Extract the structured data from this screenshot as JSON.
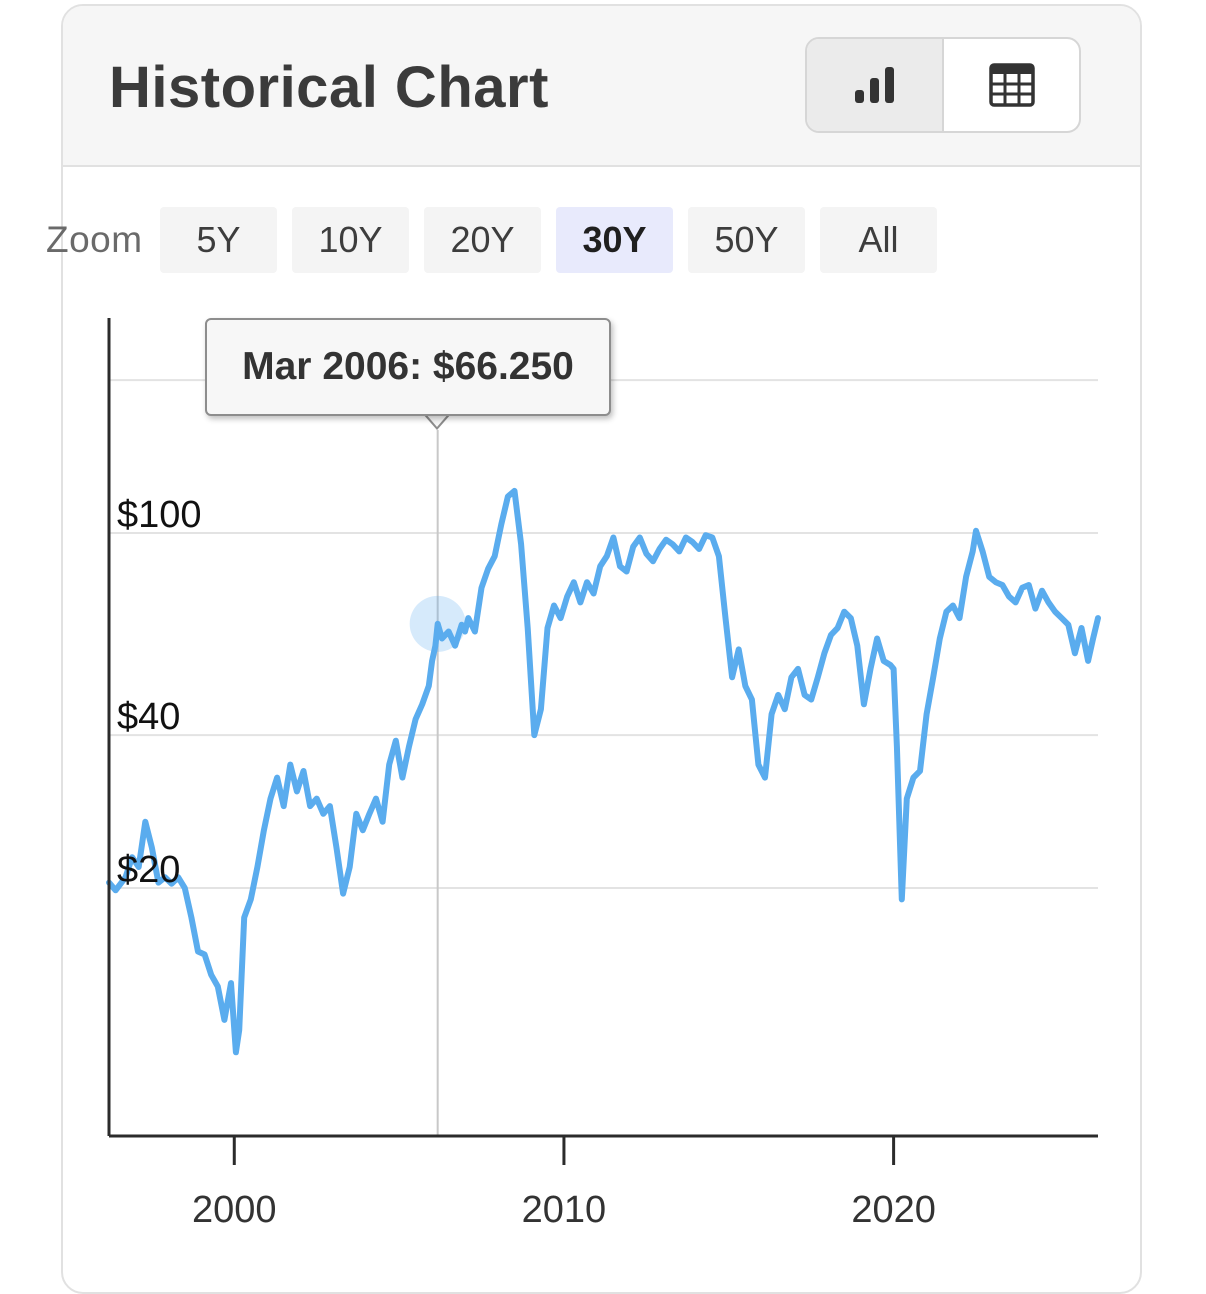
{
  "header": {
    "title": "Historical Chart",
    "chart_view_icon": "bar-chart-icon",
    "table_view_icon": "table-grid-icon"
  },
  "zoom": {
    "label": "Zoom",
    "options": [
      "5Y",
      "10Y",
      "20Y",
      "30Y",
      "50Y",
      "All"
    ],
    "selected": "30Y"
  },
  "tooltip": {
    "text": "Mar 2006: $66.250"
  },
  "colors": {
    "line": "#5aacee",
    "grid": "#e3e3e3",
    "axis": "#2b2b2b",
    "crosshair": "#c8c8c8",
    "zoom_active_bg": "#e8eafc"
  },
  "chart_data": {
    "type": "line",
    "title": "Historical Chart",
    "xlabel": "",
    "ylabel": "",
    "x_ticks": [
      2000,
      2010,
      2020
    ],
    "y_ticks": [
      {
        "value": 20,
        "label": "$20"
      },
      {
        "value": 40,
        "label": "$40"
      },
      {
        "value": 100,
        "label": "$100"
      }
    ],
    "y_scale": "log",
    "xlim": [
      1996.2,
      2026.2
    ],
    "ylim": [
      6.5,
      265
    ],
    "grid": true,
    "legend": "none",
    "highlight": {
      "x": 2006.17,
      "y": 66.25
    },
    "series": [
      {
        "points": [
          [
            1996.2,
            20.5
          ],
          [
            1996.4,
            19.8
          ],
          [
            1996.7,
            21
          ],
          [
            1996.9,
            23
          ],
          [
            1997.1,
            22
          ],
          [
            1997.3,
            27
          ],
          [
            1997.5,
            24
          ],
          [
            1997.7,
            20.5
          ],
          [
            1997.9,
            21
          ],
          [
            1998.1,
            20.4
          ],
          [
            1998.3,
            21
          ],
          [
            1998.5,
            20
          ],
          [
            1998.7,
            17.5
          ],
          [
            1998.9,
            15
          ],
          [
            1999.1,
            14.8
          ],
          [
            1999.3,
            13.5
          ],
          [
            1999.5,
            12.8
          ],
          [
            1999.7,
            11
          ],
          [
            1999.9,
            13
          ],
          [
            2000.05,
            9.5
          ],
          [
            2000.15,
            10.5
          ],
          [
            2000.3,
            17.5
          ],
          [
            2000.5,
            19
          ],
          [
            2000.7,
            22
          ],
          [
            2000.9,
            26
          ],
          [
            2001.1,
            30
          ],
          [
            2001.3,
            33
          ],
          [
            2001.5,
            29
          ],
          [
            2001.7,
            35
          ],
          [
            2001.9,
            31
          ],
          [
            2002.1,
            34
          ],
          [
            2002.3,
            29
          ],
          [
            2002.5,
            30
          ],
          [
            2002.7,
            28
          ],
          [
            2002.9,
            29
          ],
          [
            2003.1,
            24
          ],
          [
            2003.3,
            19.5
          ],
          [
            2003.5,
            22
          ],
          [
            2003.7,
            28
          ],
          [
            2003.9,
            26
          ],
          [
            2004.1,
            28
          ],
          [
            2004.3,
            30
          ],
          [
            2004.5,
            27
          ],
          [
            2004.7,
            35
          ],
          [
            2004.9,
            39
          ],
          [
            2005.1,
            33
          ],
          [
            2005.3,
            38
          ],
          [
            2005.5,
            43
          ],
          [
            2005.7,
            46
          ],
          [
            2005.9,
            50
          ],
          [
            2006.0,
            56
          ],
          [
            2006.1,
            60
          ],
          [
            2006.17,
            66.25
          ],
          [
            2006.3,
            62
          ],
          [
            2006.5,
            64
          ],
          [
            2006.7,
            60
          ],
          [
            2006.9,
            66
          ],
          [
            2007.0,
            64
          ],
          [
            2007.1,
            68
          ],
          [
            2007.3,
            64
          ],
          [
            2007.5,
            78
          ],
          [
            2007.7,
            85
          ],
          [
            2007.9,
            90
          ],
          [
            2008.1,
            104
          ],
          [
            2008.3,
            118
          ],
          [
            2008.5,
            121
          ],
          [
            2008.7,
            95
          ],
          [
            2008.9,
            65
          ],
          [
            2009.1,
            40
          ],
          [
            2009.3,
            45
          ],
          [
            2009.5,
            65
          ],
          [
            2009.7,
            72
          ],
          [
            2009.9,
            68
          ],
          [
            2010.1,
            75
          ],
          [
            2010.3,
            80
          ],
          [
            2010.5,
            73
          ],
          [
            2010.7,
            80
          ],
          [
            2010.9,
            76
          ],
          [
            2011.1,
            86
          ],
          [
            2011.3,
            90
          ],
          [
            2011.5,
            98
          ],
          [
            2011.7,
            86
          ],
          [
            2011.9,
            84
          ],
          [
            2012.1,
            94
          ],
          [
            2012.3,
            98
          ],
          [
            2012.5,
            91
          ],
          [
            2012.7,
            88
          ],
          [
            2012.9,
            93
          ],
          [
            2013.1,
            97
          ],
          [
            2013.3,
            95
          ],
          [
            2013.5,
            92
          ],
          [
            2013.7,
            98
          ],
          [
            2013.9,
            96
          ],
          [
            2014.1,
            93
          ],
          [
            2014.3,
            99
          ],
          [
            2014.5,
            98
          ],
          [
            2014.7,
            90
          ],
          [
            2014.9,
            68
          ],
          [
            2015.1,
            52
          ],
          [
            2015.3,
            59
          ],
          [
            2015.5,
            50
          ],
          [
            2015.7,
            47
          ],
          [
            2015.9,
            35
          ],
          [
            2016.1,
            33
          ],
          [
            2016.3,
            44
          ],
          [
            2016.5,
            48
          ],
          [
            2016.7,
            45
          ],
          [
            2016.9,
            52
          ],
          [
            2017.1,
            54
          ],
          [
            2017.3,
            48
          ],
          [
            2017.5,
            47
          ],
          [
            2017.7,
            52
          ],
          [
            2017.9,
            58
          ],
          [
            2018.1,
            63
          ],
          [
            2018.3,
            65
          ],
          [
            2018.5,
            70
          ],
          [
            2018.7,
            68
          ],
          [
            2018.9,
            60
          ],
          [
            2019.1,
            46
          ],
          [
            2019.3,
            54
          ],
          [
            2019.5,
            62
          ],
          [
            2019.7,
            56
          ],
          [
            2019.9,
            55
          ],
          [
            2020.0,
            54
          ],
          [
            2020.1,
            38
          ],
          [
            2020.25,
            19
          ],
          [
            2020.4,
            30
          ],
          [
            2020.6,
            33
          ],
          [
            2020.8,
            34
          ],
          [
            2021.0,
            44
          ],
          [
            2021.2,
            52
          ],
          [
            2021.4,
            62
          ],
          [
            2021.6,
            70
          ],
          [
            2021.8,
            72
          ],
          [
            2022.0,
            68
          ],
          [
            2022.2,
            82
          ],
          [
            2022.4,
            92
          ],
          [
            2022.5,
            101
          ],
          [
            2022.7,
            92
          ],
          [
            2022.9,
            82
          ],
          [
            2023.1,
            80
          ],
          [
            2023.3,
            79
          ],
          [
            2023.5,
            75
          ],
          [
            2023.7,
            73
          ],
          [
            2023.9,
            78
          ],
          [
            2024.1,
            79
          ],
          [
            2024.3,
            71
          ],
          [
            2024.5,
            77
          ],
          [
            2024.7,
            73
          ],
          [
            2024.9,
            70
          ],
          [
            2025.1,
            68
          ],
          [
            2025.3,
            66
          ],
          [
            2025.5,
            58
          ],
          [
            2025.7,
            65
          ],
          [
            2025.9,
            56
          ],
          [
            2026.05,
            62
          ],
          [
            2026.2,
            68
          ]
        ]
      }
    ]
  }
}
